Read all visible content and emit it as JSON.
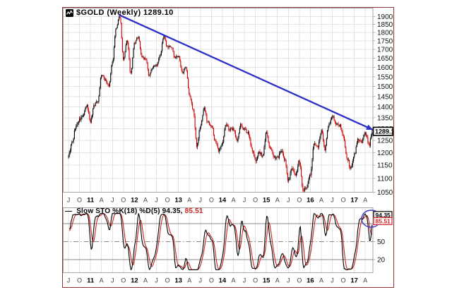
{
  "header": {
    "title": "$GOLD (Weekly) 1289.10"
  },
  "price_pane": {
    "last_price_label": "1289.10",
    "y_tick_labels": [
      1900,
      1850,
      1800,
      1750,
      1700,
      1650,
      1600,
      1550,
      1500,
      1450,
      1400,
      1350,
      1300,
      1250,
      1200,
      1150,
      1100,
      1050
    ]
  },
  "x_axis": {
    "tick_labels": [
      "J",
      "O",
      "11",
      "A",
      "J",
      "O",
      "12",
      "A",
      "J",
      "O",
      "13",
      "A",
      "J",
      "O",
      "14",
      "A",
      "J",
      "O",
      "15",
      "A",
      "J",
      "O",
      "16",
      "A",
      "J",
      "O",
      "17",
      "A"
    ],
    "tick_month_offsets": [
      0,
      3,
      6,
      9,
      12,
      15,
      18,
      21,
      24,
      27,
      30,
      33,
      36,
      39,
      42,
      45,
      48,
      51,
      54,
      57,
      60,
      63,
      66,
      69,
      72,
      75,
      78,
      81
    ]
  },
  "indicator_pane": {
    "legend_dash": "—",
    "legend_label": "Slow STO %K(18) %D(5)",
    "k_value_text": "94.35,",
    "d_value_text": "85.51",
    "k_box_label": "94.35",
    "d_box_label": "85.51",
    "y_tick_labels": [
      "50",
      "20"
    ],
    "y_tick_values": [
      50,
      20
    ]
  },
  "colors": {
    "frame_border": "#993333",
    "grid": "#e3e3e3",
    "plot_border": "#a6a6a6",
    "candle_up": "#000000",
    "candle_down": "#cc0000",
    "trendline": "#2d2dc8",
    "stoch_k": "#000000",
    "stoch_d": "#cc2222",
    "ref_line": "#8a8a8a",
    "highlight_ellipse": "#3a3ac8",
    "axis_text": "#111111",
    "month_text": "#444444"
  },
  "chart_data": [
    {
      "type": "candlestick",
      "title": "$GOLD (Weekly) 1289.10",
      "timeframe": "weekly",
      "x_start_month": "2010-07",
      "monthly_close_anchors": [
        1190,
        1240,
        1310,
        1340,
        1360,
        1405,
        1335,
        1410,
        1430,
        1560,
        1535,
        1500,
        1630,
        1825,
        1900,
        1640,
        1750,
        1565,
        1735,
        1775,
        1660,
        1645,
        1560,
        1600,
        1615,
        1670,
        1775,
        1710,
        1715,
        1655,
        1660,
        1575,
        1595,
        1455,
        1390,
        1230,
        1310,
        1395,
        1330,
        1315,
        1250,
        1205,
        1245,
        1320,
        1295,
        1300,
        1250,
        1315,
        1295,
        1285,
        1215,
        1170,
        1200,
        1185,
        1285,
        1215,
        1185,
        1180,
        1205,
        1170,
        1095,
        1135,
        1115,
        1165,
        1060,
        1065,
        1115,
        1235,
        1220,
        1290,
        1215,
        1320,
        1355,
        1325,
        1315,
        1265,
        1180,
        1135,
        1190,
        1255,
        1245,
        1285,
        1230,
        1290
      ],
      "last_close": 1289.1,
      "y_scale": "log",
      "ylim": [
        1050,
        1900
      ],
      "y_step": 50,
      "grid": true,
      "trendline": {
        "start_month_index": 14,
        "start_price": 1908,
        "end_price": 1296
      }
    },
    {
      "type": "line",
      "name": "Slow STO %K(18) %D(5)",
      "k_period": 18,
      "k_smoothing": 3,
      "d_period": 5,
      "last_k": 94.35,
      "last_d": 85.51,
      "ref_lines": [
        80,
        50,
        20
      ],
      "ylim": [
        0,
        100
      ],
      "derived_from_price_pane": true,
      "legend_position": "top-left"
    }
  ]
}
